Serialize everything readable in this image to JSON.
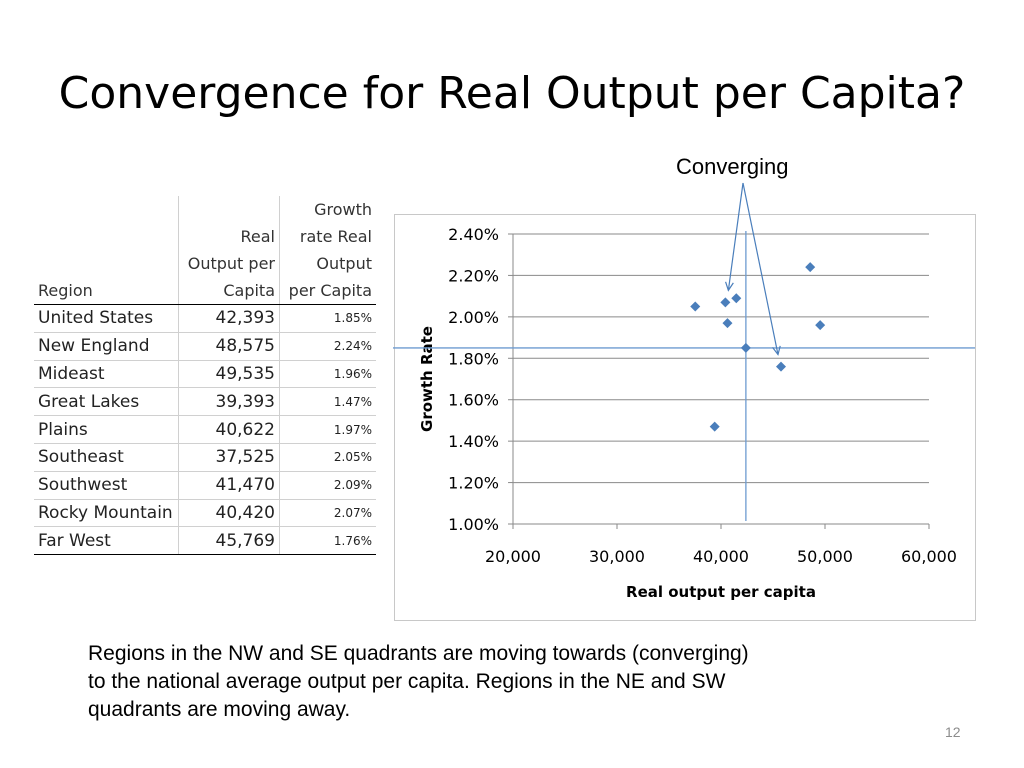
{
  "slide": {
    "title": "Convergence for Real Output per Capita?",
    "annotation": "Converging",
    "caption_line1": "Regions in the NW and SE quadrants are moving towards (converging)",
    "caption_line2": "to the national average output per capita.   Regions in the NE and SW",
    "caption_line3": "quadrants are moving away.",
    "page_number": "12"
  },
  "table": {
    "headers": [
      [
        "Region"
      ],
      [
        "Real",
        "Output per",
        "Capita"
      ],
      [
        "Growth",
        "rate Real",
        "Output",
        "per Capita"
      ]
    ],
    "rows": [
      [
        "United States",
        "42,393",
        "1.85%"
      ],
      [
        "New England",
        "48,575",
        "2.24%"
      ],
      [
        "Mideast",
        "49,535",
        "1.96%"
      ],
      [
        "Great Lakes",
        "39,393",
        "1.47%"
      ],
      [
        "Plains",
        "40,622",
        "1.97%"
      ],
      [
        "Southeast",
        "37,525",
        "2.05%"
      ],
      [
        "Southwest",
        "41,470",
        "2.09%"
      ],
      [
        "Rocky Mountain",
        "40,420",
        "2.07%"
      ],
      [
        "Far West",
        "45,769",
        "1.76%"
      ]
    ]
  },
  "chart_data": {
    "type": "scatter",
    "xlabel": "Real output per capita",
    "ylabel": "Growth Rate",
    "xlim": [
      20000,
      60000
    ],
    "ylim": [
      1.0,
      2.4
    ],
    "x_ticks": [
      "20,000",
      "30,000",
      "40,000",
      "50,000",
      "60,000"
    ],
    "y_ticks": [
      "1.00%",
      "1.20%",
      "1.40%",
      "1.60%",
      "1.80%",
      "2.00%",
      "2.20%",
      "2.40%"
    ],
    "grid": "horizontal",
    "marker_color": "#4a7ebb",
    "reference_line_color": "#6d9bd0",
    "annotation_color": "#4a7ebb",
    "reference_lines": {
      "x": 42393,
      "y": 1.85
    },
    "points": [
      {
        "x": 42393,
        "y": 1.85
      },
      {
        "x": 48575,
        "y": 2.24
      },
      {
        "x": 49535,
        "y": 1.96
      },
      {
        "x": 39393,
        "y": 1.47
      },
      {
        "x": 40622,
        "y": 1.97
      },
      {
        "x": 37525,
        "y": 2.05
      },
      {
        "x": 41470,
        "y": 2.09
      },
      {
        "x": 40420,
        "y": 2.07
      },
      {
        "x": 45769,
        "y": 1.76
      }
    ],
    "arrow_targets": [
      {
        "x": 40420,
        "y": 2.07
      },
      {
        "x": 45769,
        "y": 1.76
      }
    ]
  }
}
